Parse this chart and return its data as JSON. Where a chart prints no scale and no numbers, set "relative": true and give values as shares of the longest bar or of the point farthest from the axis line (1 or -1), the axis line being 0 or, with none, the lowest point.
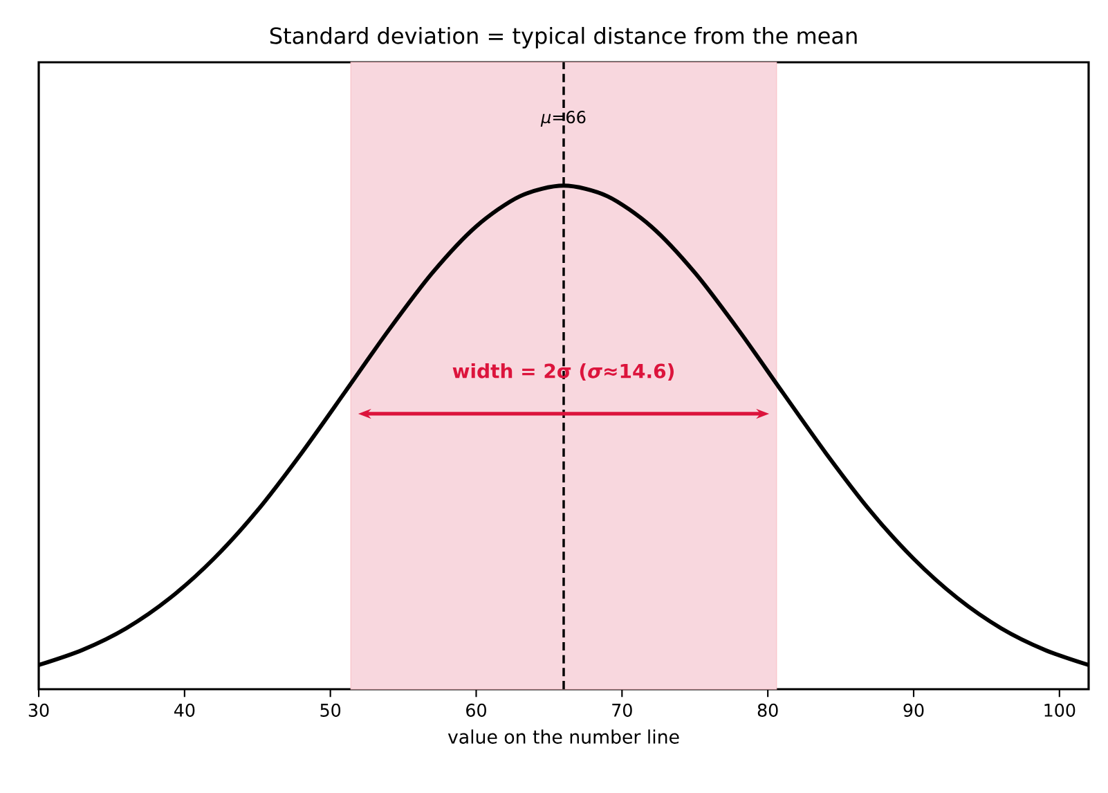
{
  "chart_data": {
    "type": "line",
    "title": "Standard deviation = typical distance from the mean",
    "xlabel": "value on the number line",
    "x": [
      30,
      33,
      36,
      39,
      42,
      45,
      48,
      51,
      54,
      57,
      60,
      63,
      66,
      69,
      72,
      75,
      78,
      81,
      84,
      87,
      90,
      93,
      96,
      99,
      102
    ],
    "series": [
      {
        "color": "#000000",
        "values": [
          0.048,
          0.078,
          0.121,
          0.181,
          0.259,
          0.355,
          0.468,
          0.59,
          0.713,
          0.827,
          0.919,
          0.979,
          1,
          0.979,
          0.919,
          0.827,
          0.713,
          0.59,
          0.468,
          0.355,
          0.259,
          0.181,
          0.121,
          0.078,
          0.048
        ]
      }
    ],
    "relative": true,
    "xlim": [
      30,
      102
    ],
    "xticks": [
      30,
      40,
      50,
      60,
      70,
      80,
      90,
      100
    ],
    "tick_labels": "x",
    "ref_lines": [
      {
        "axis": "x",
        "value": 66,
        "label": "*μ*=66",
        "color": "#000000",
        "line_style": "dashed"
      }
    ],
    "bands": [
      {
        "axis": "x",
        "from": 51.4,
        "to": 80.6,
        "color": "#f8d7de"
      }
    ],
    "annotations": [
      {
        "text": "width = 2σ (*σ*≈14.6)",
        "x": 66,
        "y": 0.63
      }
    ]
  }
}
